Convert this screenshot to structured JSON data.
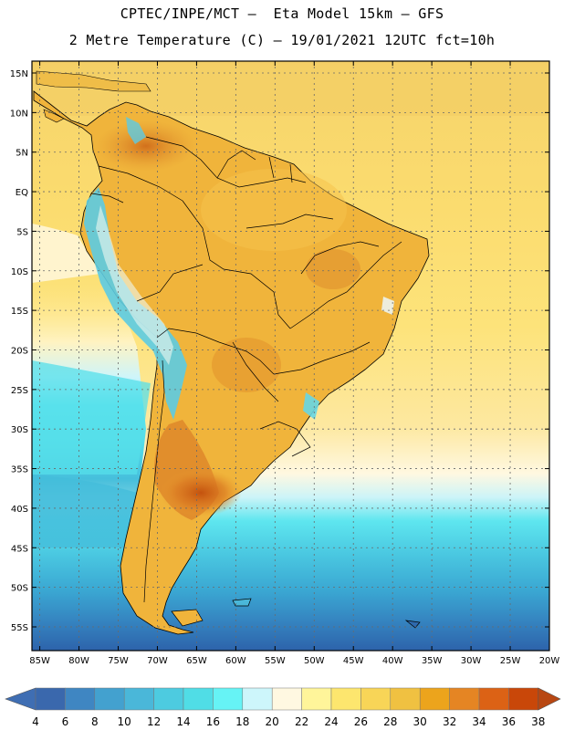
{
  "header": {
    "line1": "CPTEC/INPE/MCT –  Eta Model 15km – GFS",
    "line2": "2 Metre Temperature (C) – 19/01/2021 12UTC fct=10h"
  },
  "axes": {
    "longitudes": [
      -85,
      -80,
      -75,
      -70,
      -65,
      -60,
      -55,
      -50,
      -45,
      -40,
      -35,
      -30,
      -25,
      -20
    ],
    "longitude_labels": [
      "85W",
      "80W",
      "75W",
      "70W",
      "65W",
      "60W",
      "55W",
      "50W",
      "45W",
      "40W",
      "35W",
      "30W",
      "25W",
      "20W"
    ],
    "latitudes": [
      15,
      10,
      5,
      0,
      -5,
      -10,
      -15,
      -20,
      -25,
      -30,
      -35,
      -40,
      -45,
      -50,
      -55
    ],
    "latitude_labels": [
      "15N",
      "10N",
      "5N",
      "EQ",
      "5S",
      "10S",
      "15S",
      "20S",
      "25S",
      "30S",
      "35S",
      "40S",
      "45S",
      "50S",
      "55S"
    ],
    "lon_range": [
      -86,
      -20
    ],
    "lat_range": [
      16.5,
      -58
    ]
  },
  "colorbar": {
    "labels": [
      "4",
      "6",
      "8",
      "10",
      "12",
      "14",
      "16",
      "18",
      "20",
      "22",
      "24",
      "26",
      "28",
      "30",
      "32",
      "34",
      "36",
      "38"
    ],
    "colors": [
      "#3a68ad",
      "#3f86c2",
      "#43a1cf",
      "#4ab7d9",
      "#4dcbe0",
      "#50dde6",
      "#66f3f5",
      "#cdf6fb",
      "#fff8e1",
      "#fff59a",
      "#fde66e",
      "#f8d557",
      "#f0c141",
      "#eca41c",
      "#e58523",
      "#dc6215",
      "#c94709"
    ],
    "lower_arrow": "#3f6eb3",
    "upper_arrow": "#b84712"
  },
  "colors": {
    "ocean_north": "#fde37a",
    "ocean_light": "#fff8e1",
    "ocean_cyan": "#59e6ee",
    "ocean_mid": "#3ab4d6",
    "ocean_deep": "#2e69ad",
    "land_base": "#f0b43b",
    "land_hot": "#c65d14",
    "andes_cold": "#52c9e2",
    "borders": "#000000"
  }
}
